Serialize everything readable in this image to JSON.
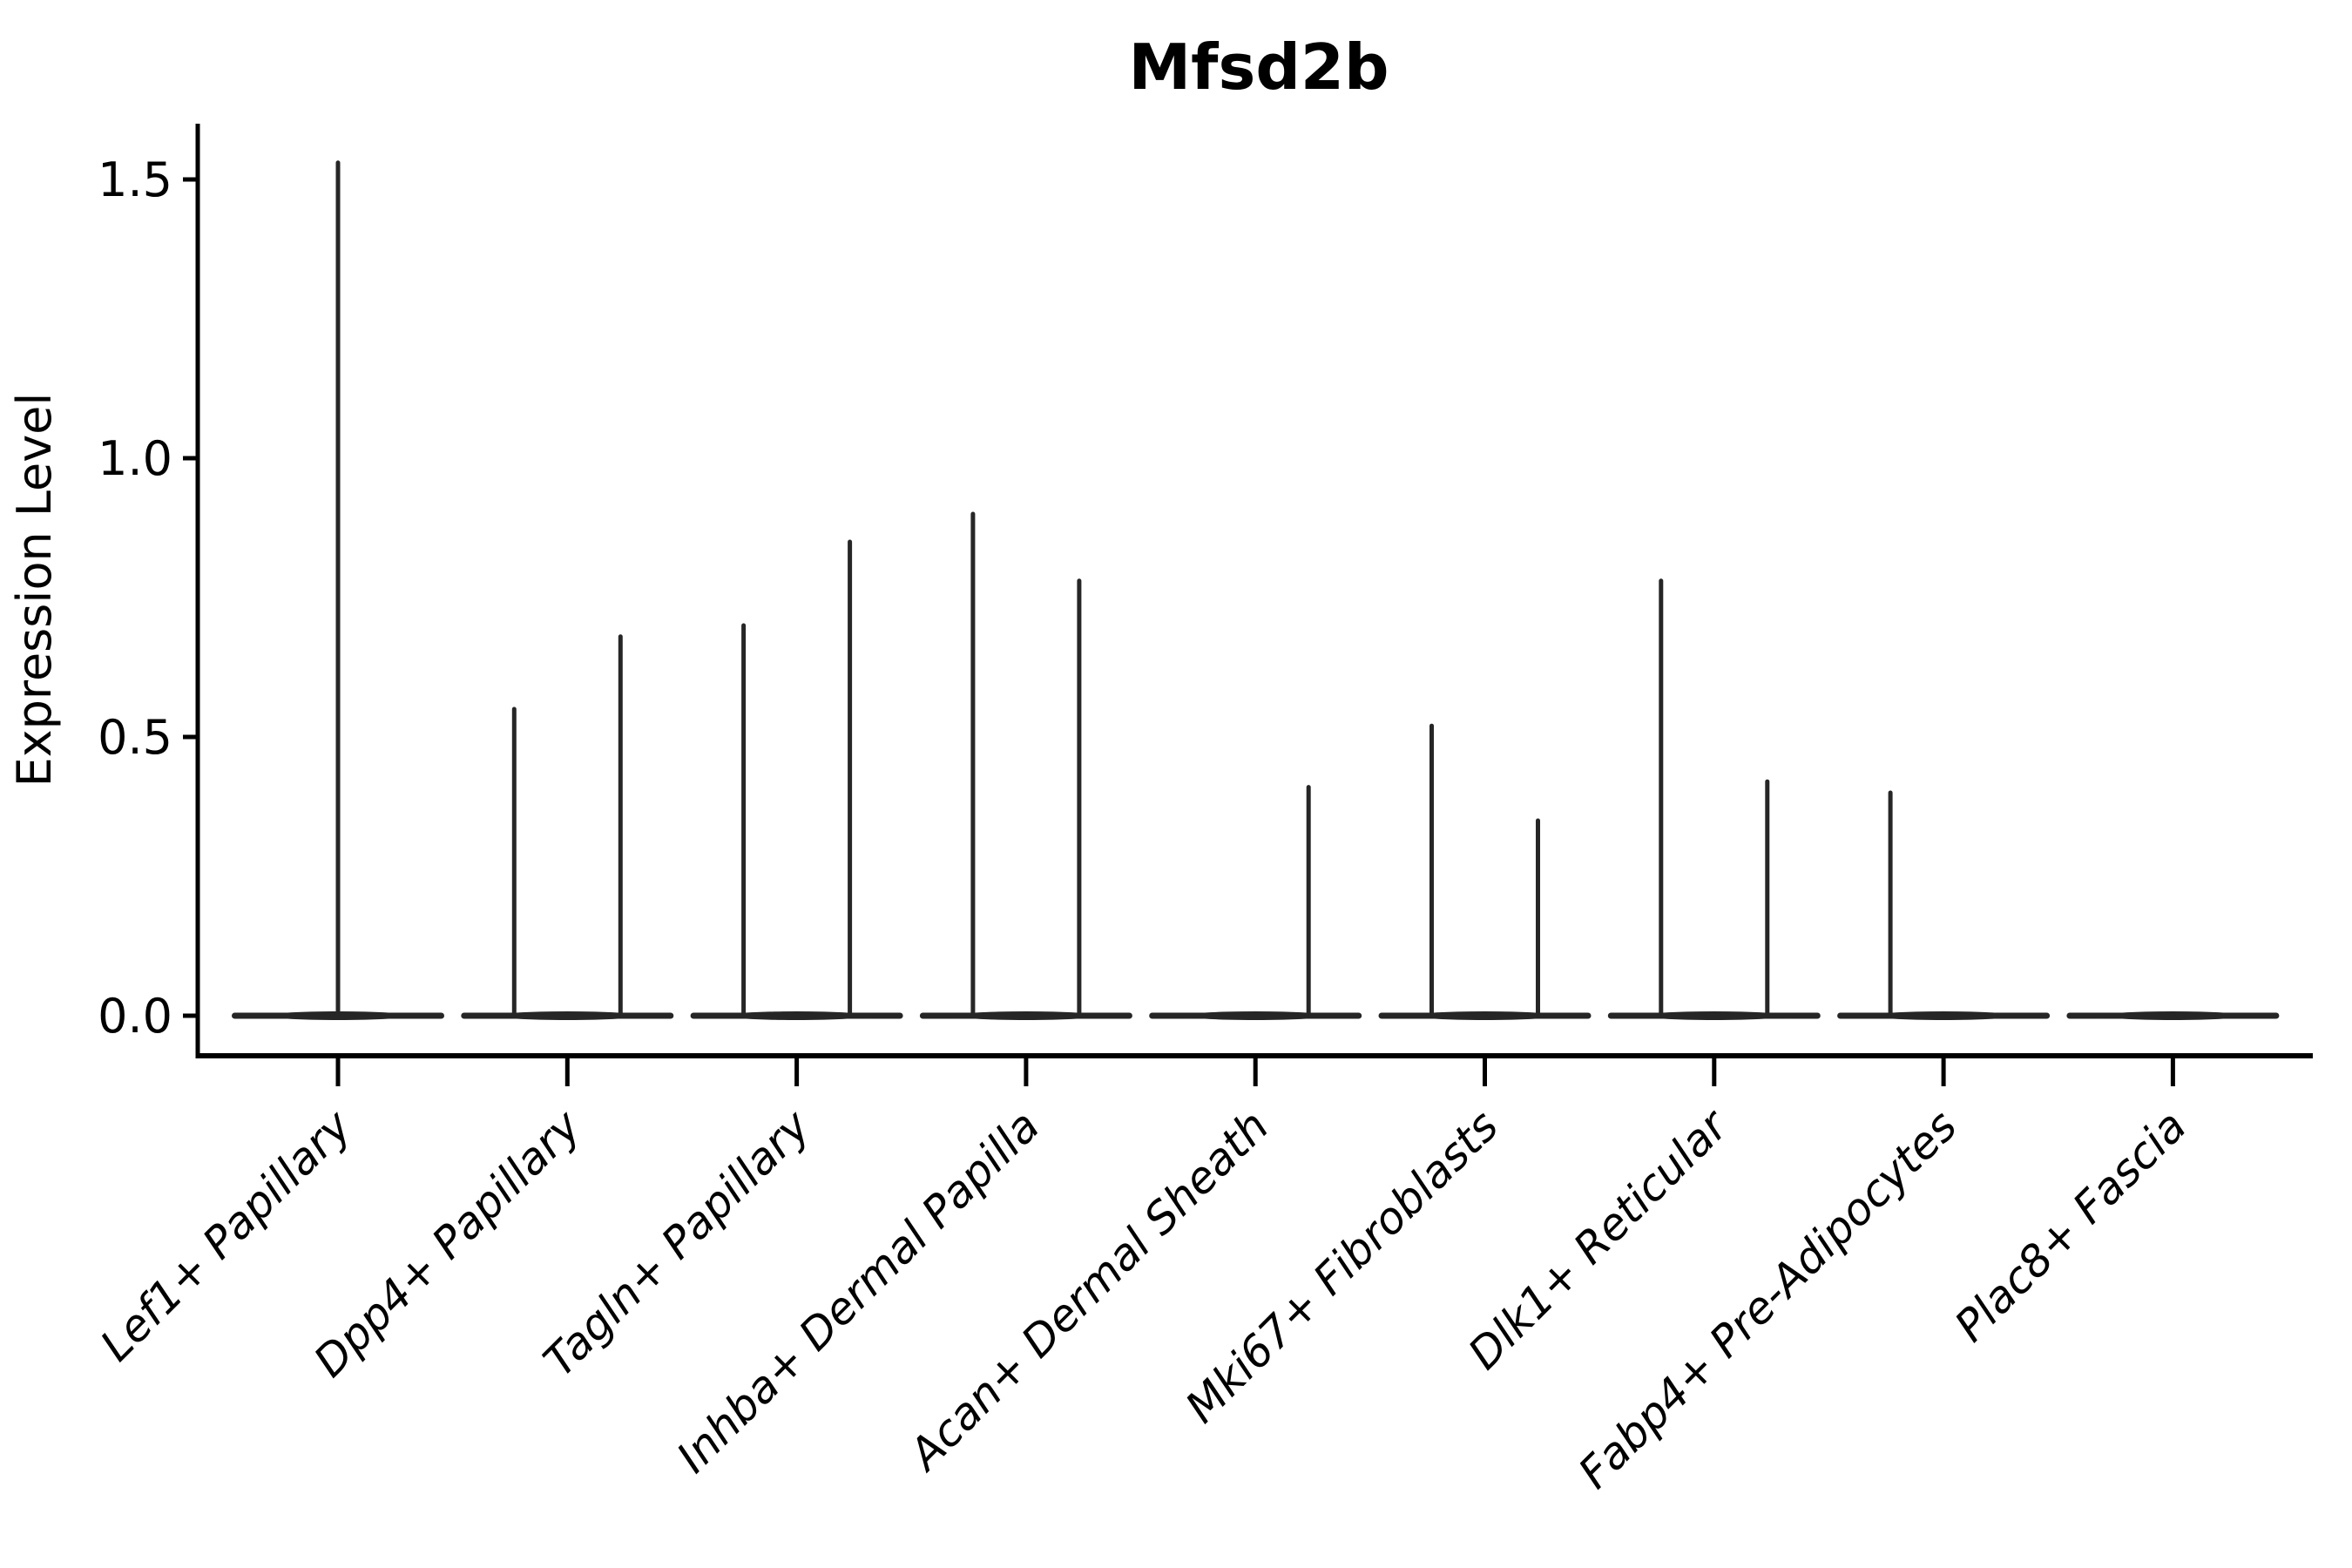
{
  "chart_data": {
    "type": "violin",
    "title": "Mfsd2b",
    "xlabel": "",
    "ylabel": "Expression Level",
    "legend": "none",
    "grid": false,
    "y_axis": {
      "range": [
        -0.08,
        1.62
      ],
      "ticks": [
        {
          "value": 0.0,
          "label": "0.0"
        },
        {
          "value": 0.5,
          "label": "0.5"
        },
        {
          "value": 1.0,
          "label": "1.0"
        },
        {
          "value": 1.5,
          "label": "1.5"
        }
      ]
    },
    "categories": [
      "Lef1+ Papillary",
      "Dpp4+ Papillary",
      "Tagln+ Papillary",
      "Inhba+ Dermal Papilla",
      "Acan+ Dermal Sheath",
      "Mki67+ Fibroblasts",
      "Dlk1+ Reticular",
      "Fabp4+ Pre-Adipocytes",
      "Plac8+ Fascia"
    ],
    "violins": [
      {
        "category": "Lef1+ Papillary",
        "base_at_zero": true,
        "spikes": [
          {
            "position": "center",
            "max_expression": 1.53
          }
        ]
      },
      {
        "category": "Dpp4+ Papillary",
        "base_at_zero": true,
        "spikes": [
          {
            "position": "left",
            "max_expression": 0.55
          },
          {
            "position": "right",
            "max_expression": 0.68
          }
        ]
      },
      {
        "category": "Tagln+ Papillary",
        "base_at_zero": true,
        "spikes": [
          {
            "position": "left",
            "max_expression": 0.7
          },
          {
            "position": "right",
            "max_expression": 0.85
          }
        ]
      },
      {
        "category": "Inhba+ Dermal Papilla",
        "base_at_zero": true,
        "spikes": [
          {
            "position": "left",
            "max_expression": 0.9
          },
          {
            "position": "right",
            "max_expression": 0.78
          }
        ]
      },
      {
        "category": "Acan+ Dermal Sheath",
        "base_at_zero": true,
        "spikes": [
          {
            "position": "right",
            "max_expression": 0.41
          }
        ]
      },
      {
        "category": "Mki67+ Fibroblasts",
        "base_at_zero": true,
        "spikes": [
          {
            "position": "left",
            "max_expression": 0.52
          },
          {
            "position": "right",
            "max_expression": 0.35
          }
        ]
      },
      {
        "category": "Dlk1+ Reticular",
        "base_at_zero": true,
        "spikes": [
          {
            "position": "left",
            "max_expression": 0.78
          },
          {
            "position": "right",
            "max_expression": 0.42
          }
        ]
      },
      {
        "category": "Fabp4+ Pre-Adipocytes",
        "base_at_zero": true,
        "spikes": [
          {
            "position": "left",
            "max_expression": 0.4
          }
        ]
      },
      {
        "category": "Plac8+ Fascia",
        "base_at_zero": true,
        "spikes": []
      }
    ],
    "style": {
      "violin_color": "#262626",
      "axis_color": "#000000",
      "text_color": "#000000",
      "background_color": "#ffffff"
    }
  }
}
